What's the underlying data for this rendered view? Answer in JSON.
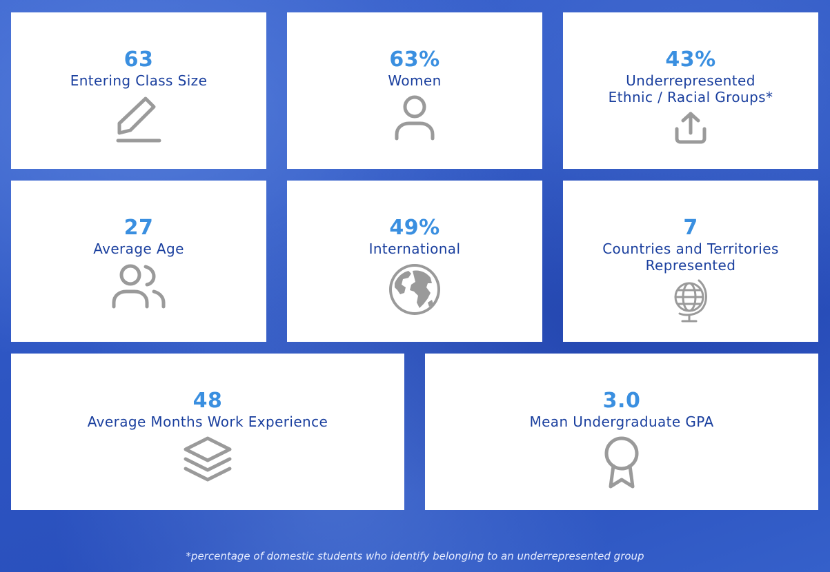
{
  "stats": [
    {
      "value": "63",
      "label": "Entering Class Size",
      "icon": "pencil-icon"
    },
    {
      "value": "63%",
      "label": "Women",
      "icon": "user-icon"
    },
    {
      "value": "43%",
      "label": "Underrepresented\nEthnic / Racial Groups*",
      "icon": "upload-icon"
    },
    {
      "value": "27",
      "label": "Average Age",
      "icon": "users-icon"
    },
    {
      "value": "49%",
      "label": "International",
      "icon": "earth-globe-icon"
    },
    {
      "value": "7",
      "label": "Countries and Territories\nRepresented",
      "icon": "desk-globe-icon"
    },
    {
      "value": "48",
      "label": "Average Months Work Experience",
      "icon": "layers-icon"
    },
    {
      "value": "3.0",
      "label": "Mean Undergraduate GPA",
      "icon": "award-ribbon-icon"
    }
  ],
  "footnote": "*percentage of domestic students who identify belonging to an underrepresented group",
  "colors": {
    "value": "#3a8fe0",
    "label": "#1a3f9e",
    "icon": "#9a9a9a",
    "background": "#2f57c4"
  }
}
